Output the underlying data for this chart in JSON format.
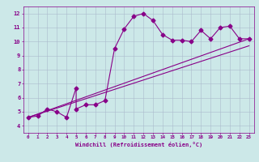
{
  "xlabel": "Windchill (Refroidissement éolien,°C)",
  "xlim": [
    -0.5,
    23.5
  ],
  "ylim": [
    3.5,
    12.5
  ],
  "xticks": [
    0,
    1,
    2,
    3,
    4,
    5,
    6,
    7,
    8,
    9,
    10,
    11,
    12,
    13,
    14,
    15,
    16,
    17,
    18,
    19,
    20,
    21,
    22,
    23
  ],
  "yticks": [
    4,
    5,
    6,
    7,
    8,
    9,
    10,
    11,
    12
  ],
  "bg_color": "#cce8e8",
  "line_color": "#880088",
  "grid_color": "#aabbcc",
  "line1_x": [
    0,
    1,
    2,
    3,
    4,
    5,
    5,
    6,
    7,
    8,
    9,
    10,
    11,
    12,
    13,
    14,
    15,
    16,
    17,
    18,
    19,
    20,
    21,
    22,
    23
  ],
  "line1_y": [
    4.6,
    4.7,
    5.2,
    5.0,
    4.6,
    6.7,
    5.2,
    5.5,
    5.5,
    5.8,
    9.5,
    10.9,
    11.8,
    12.0,
    11.5,
    10.5,
    10.1,
    10.1,
    10.0,
    10.8,
    10.2,
    11.0,
    11.1,
    10.2,
    10.2
  ],
  "line2_x": [
    0,
    23
  ],
  "line2_y": [
    4.6,
    10.2
  ],
  "line3_x": [
    0,
    23
  ],
  "line3_y": [
    4.6,
    9.7
  ],
  "marker": "D",
  "markersize": 2.5,
  "linewidth": 0.8
}
